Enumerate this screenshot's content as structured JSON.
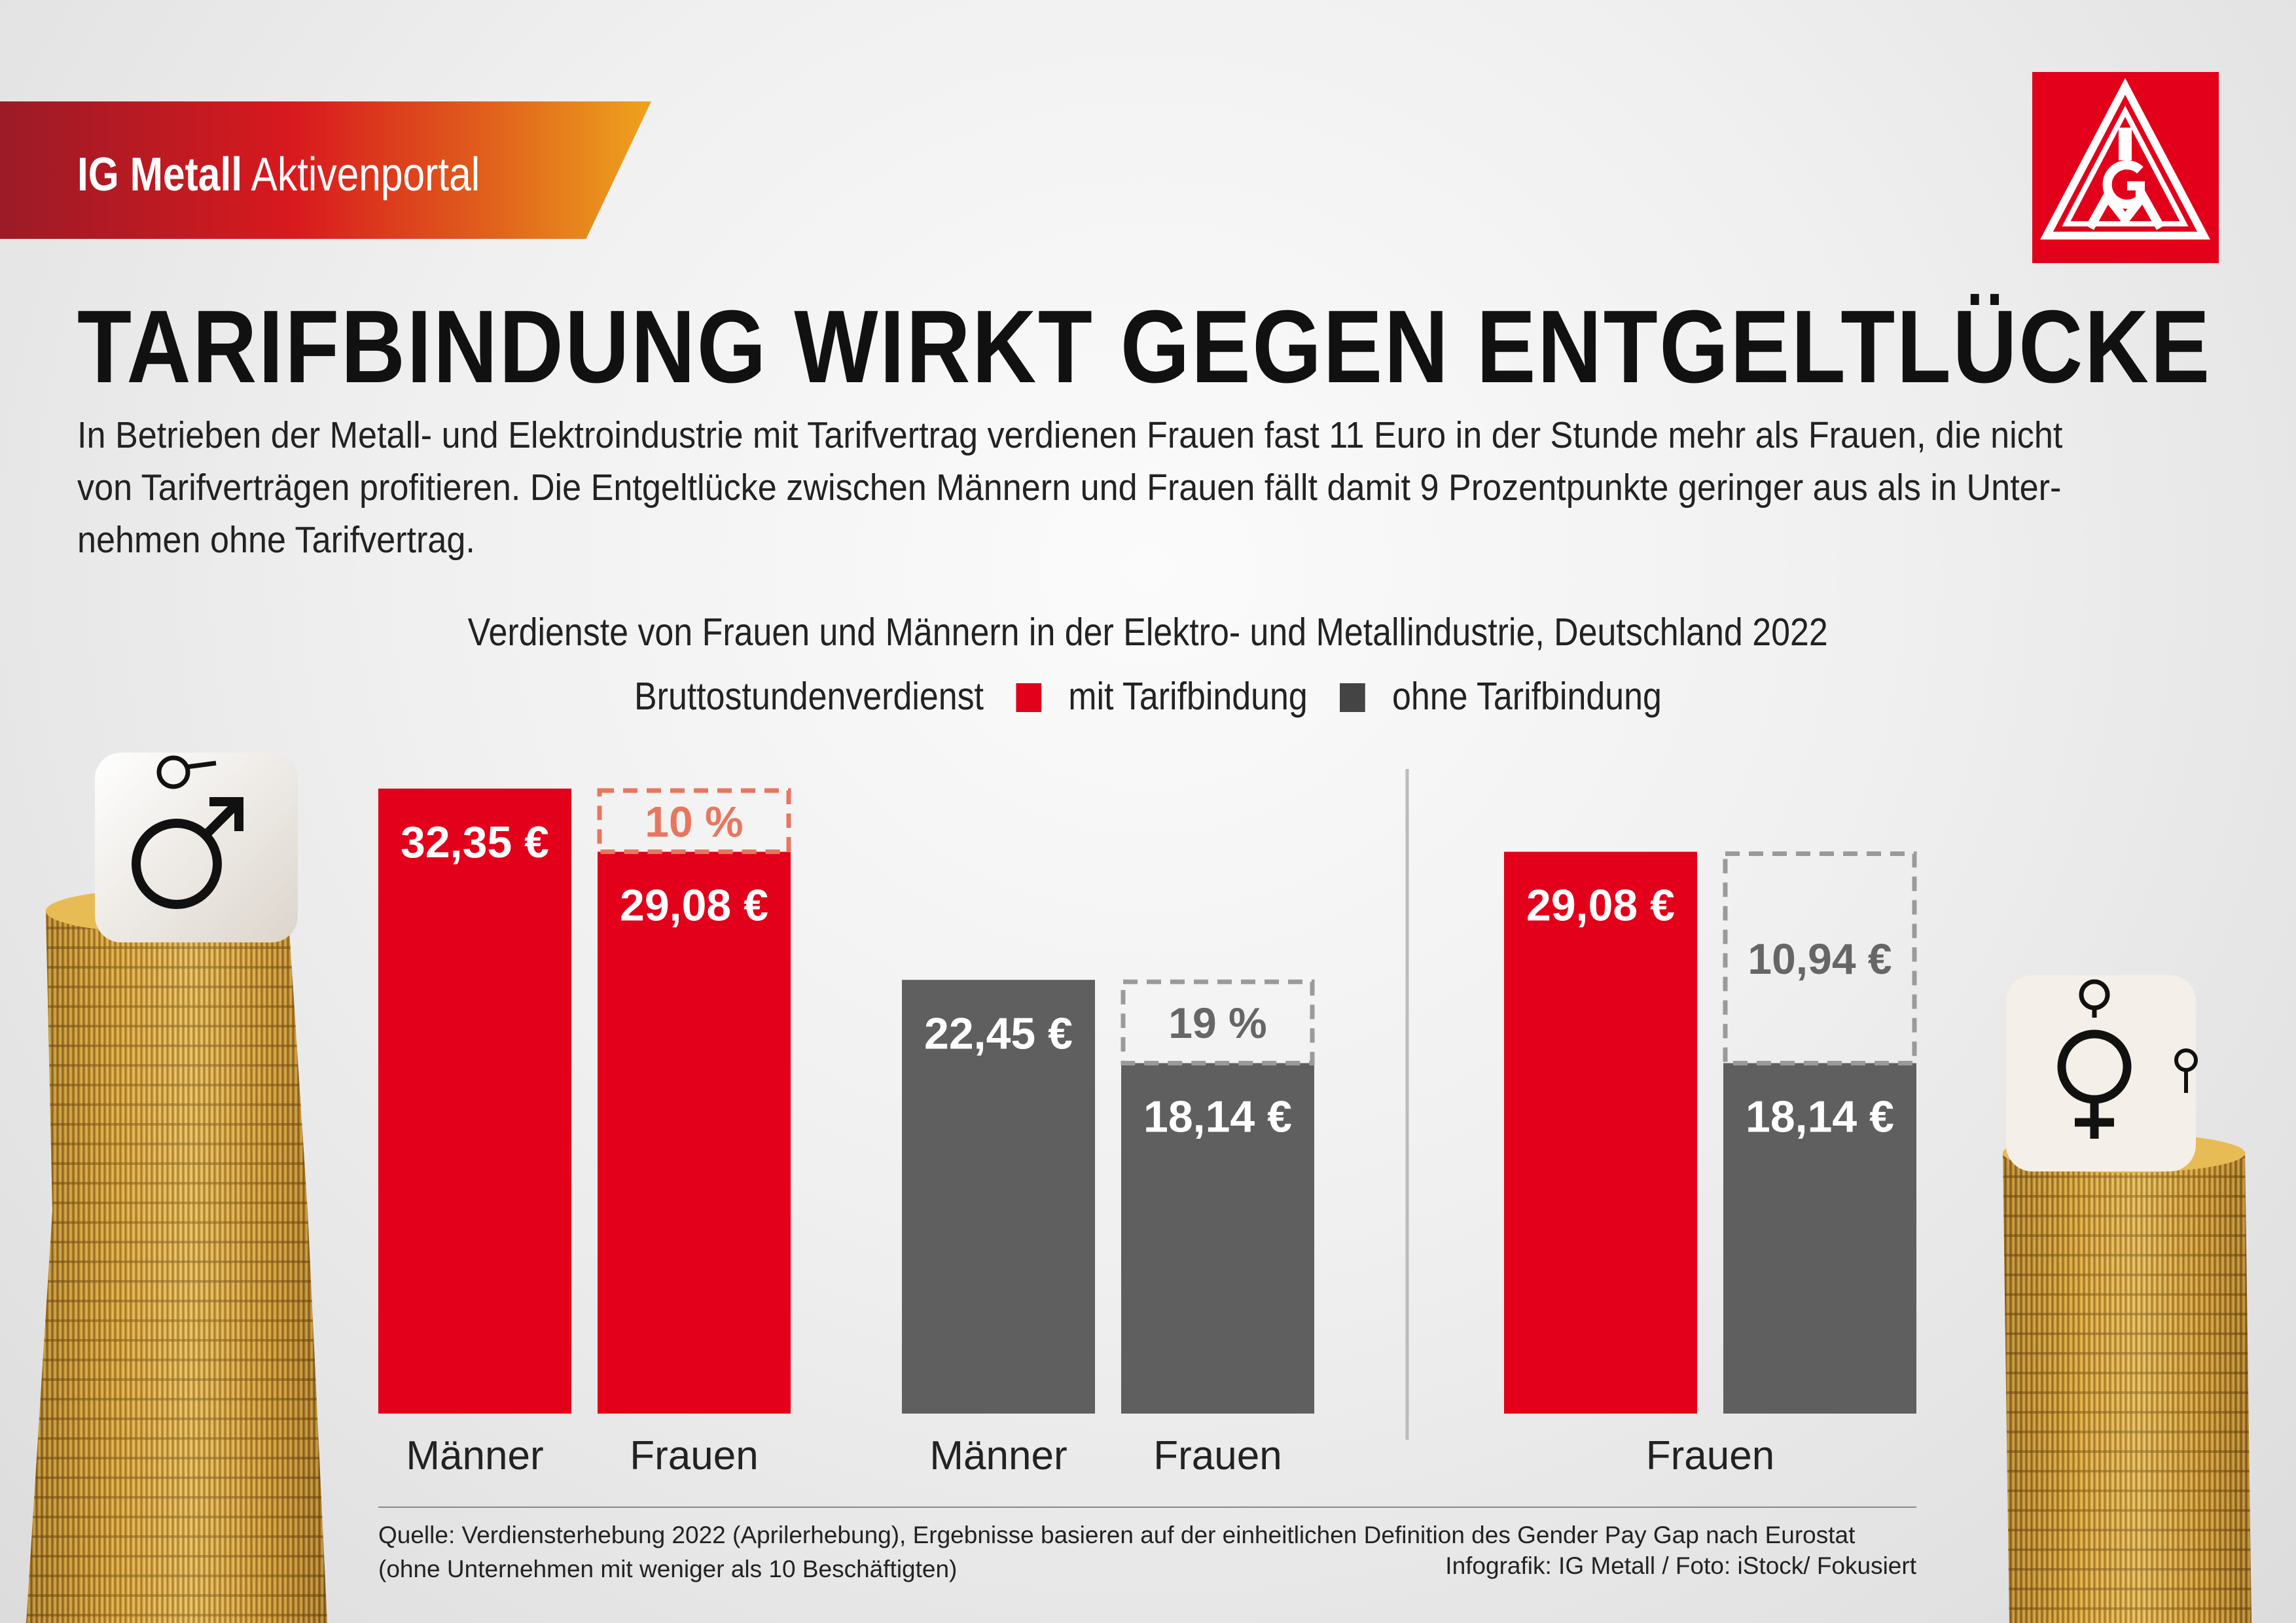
{
  "header": {
    "brand_bold": "IG Metall",
    "brand_light": "Aktivenportal",
    "logo_letters": "IGM"
  },
  "headline": "TARIFBINDUNG WIRKT GEGEN ENTGELTLÜCKE",
  "intro_lines": [
    "In Betrieben der Metall- und Elektroindustrie mit Tarifvertrag verdienen Frauen fast 11 Euro in der Stunde mehr als Frauen, die nicht",
    "von Tarifverträgen profitieren. Die Entgeltlücke zwischen Männern und Frauen fällt damit 9 Prozentpunkte geringer aus als in Unter-",
    "nehmen ohne Tarifvertrag."
  ],
  "legend": {
    "label": "Bruttostundenverdienst",
    "items": [
      {
        "name": "mit Tarifbindung",
        "color": "#e2001a"
      },
      {
        "name": "ohne Tarifbindung",
        "color": "#444444"
      }
    ]
  },
  "footer": {
    "source": "Quelle: Verdiensterhebung 2022 (Aprilerhebung), Ergebnisse basieren auf der einheitlichen Definition des Gender Pay Gap nach Eurostat (ohne Unternehmen mit weniger als 10 Beschäftigten)",
    "credit": "Infografik: IG Metall / Foto: iStock/ Fokusiert"
  },
  "icons": [
    "male-symbol-dice",
    "female-symbol-dice",
    "coin-stack"
  ],
  "chart_data": {
    "type": "bar",
    "title": "Verdienste von Frauen und Männern in der Elektro- und Metallindustrie, Deutschland 2022",
    "unit": "€",
    "colors": {
      "mit Tarifbindung": "#e2001a",
      "ohne Tarifbindung": "#5f5f5f",
      "gap_red": "#e8765f",
      "gap_grey": "#9a9a9a"
    },
    "groups": [
      {
        "name": "mit Tarifbindung",
        "bars": [
          {
            "category": "Männer",
            "value": 32.35,
            "label": "32,35 €",
            "series": "mit Tarifbindung"
          },
          {
            "category": "Frauen",
            "value": 29.08,
            "label": "29,08 €",
            "series": "mit Tarifbindung",
            "gap_to": 32.35,
            "gap_label": "10 %"
          }
        ]
      },
      {
        "name": "ohne Tarifbindung",
        "bars": [
          {
            "category": "Männer",
            "value": 22.45,
            "label": "22,45 €",
            "series": "ohne Tarifbindung"
          },
          {
            "category": "Frauen",
            "value": 18.14,
            "label": "18,14 €",
            "series": "ohne Tarifbindung",
            "gap_to": 22.45,
            "gap_label": "19 %"
          }
        ]
      },
      {
        "name": "Frauen",
        "bars": [
          {
            "category": "Frauen",
            "value": 29.08,
            "label": "29,08 €",
            "series": "mit Tarifbindung"
          },
          {
            "category": "Frauen",
            "value": 18.14,
            "label": "18,14 €",
            "series": "ohne Tarifbindung",
            "gap_to": 29.08,
            "gap_label": "10,94 €"
          }
        ]
      }
    ],
    "category_labels": [
      "Männer",
      "Frauen",
      "Männer",
      "Frauen",
      "Frauen"
    ],
    "ylim": [
      0,
      32.35
    ],
    "grid": false
  }
}
